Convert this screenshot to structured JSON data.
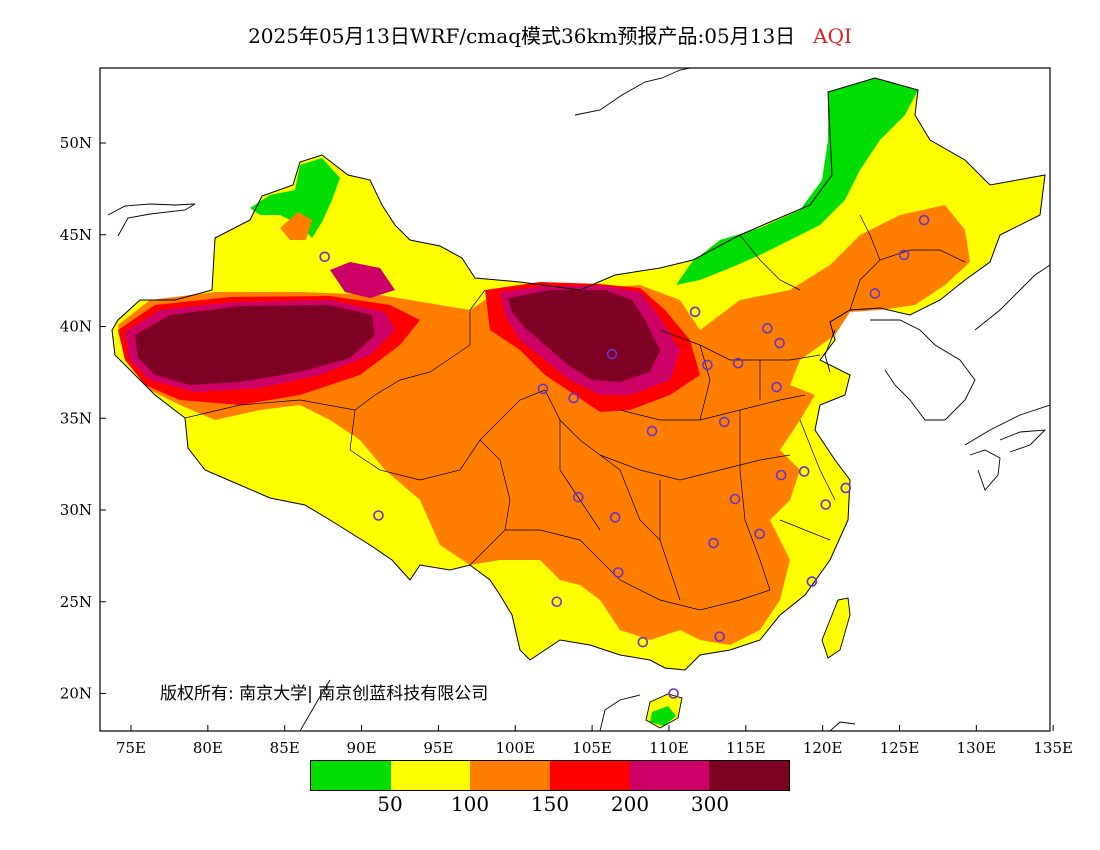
{
  "header": {
    "title": "2025年05月13日WRF/cmaq模式36km预报产品:05月13日",
    "variable": "AQI"
  },
  "colors": {
    "title_variable": "#e02020",
    "level_good": "#00dd00",
    "level_moderate": "#ffff00",
    "level_unhealthy_sensitive": "#ff7e00",
    "level_unhealthy": "#ff0000",
    "level_very_unhealthy": "#cc0066",
    "level_hazardous": "#7e0023",
    "station_marker": "#6633cc"
  },
  "axes": {
    "lat_labels": [
      "50N",
      "45N",
      "40N",
      "35N",
      "30N",
      "25N",
      "20N"
    ],
    "lon_labels": [
      "75E",
      "80E",
      "85E",
      "90E",
      "95E",
      "100E",
      "105E",
      "110E",
      "115E",
      "120E",
      "125E",
      "130E",
      "135E"
    ]
  },
  "copyright": "版权所有: 南京大学| 南京创蓝科技有限公司",
  "legend": {
    "thresholds": [
      "50",
      "100",
      "150",
      "200",
      "300"
    ],
    "levels": [
      {
        "color_key": "level_good"
      },
      {
        "color_key": "level_moderate"
      },
      {
        "color_key": "level_unhealthy_sensitive"
      },
      {
        "color_key": "level_unhealthy"
      },
      {
        "color_key": "level_very_unhealthy"
      },
      {
        "color_key": "level_hazardous"
      }
    ]
  },
  "stations": [
    {
      "lon": 87.6,
      "lat": 43.8
    },
    {
      "lon": 91.1,
      "lat": 29.7
    },
    {
      "lon": 101.8,
      "lat": 36.6
    },
    {
      "lon": 103.8,
      "lat": 36.1
    },
    {
      "lon": 106.3,
      "lat": 38.5
    },
    {
      "lon": 111.7,
      "lat": 40.8
    },
    {
      "lon": 112.5,
      "lat": 37.9
    },
    {
      "lon": 114.5,
      "lat": 38.0
    },
    {
      "lon": 116.4,
      "lat": 39.9
    },
    {
      "lon": 117.2,
      "lat": 39.1
    },
    {
      "lon": 117.0,
      "lat": 36.7
    },
    {
      "lon": 113.6,
      "lat": 34.8
    },
    {
      "lon": 108.9,
      "lat": 34.3
    },
    {
      "lon": 104.1,
      "lat": 30.7
    },
    {
      "lon": 106.5,
      "lat": 29.6
    },
    {
      "lon": 106.7,
      "lat": 26.6
    },
    {
      "lon": 102.7,
      "lat": 25.0
    },
    {
      "lon": 108.3,
      "lat": 22.8
    },
    {
      "lon": 113.3,
      "lat": 23.1
    },
    {
      "lon": 110.3,
      "lat": 20.0
    },
    {
      "lon": 119.3,
      "lat": 26.1
    },
    {
      "lon": 115.9,
      "lat": 28.7
    },
    {
      "lon": 112.9,
      "lat": 28.2
    },
    {
      "lon": 114.3,
      "lat": 30.6
    },
    {
      "lon": 117.3,
      "lat": 31.9
    },
    {
      "lon": 118.8,
      "lat": 32.1
    },
    {
      "lon": 120.2,
      "lat": 30.3
    },
    {
      "lon": 121.5,
      "lat": 31.2
    },
    {
      "lon": 123.4,
      "lat": 41.8
    },
    {
      "lon": 125.3,
      "lat": 43.9
    },
    {
      "lon": 126.6,
      "lat": 45.8
    }
  ]
}
